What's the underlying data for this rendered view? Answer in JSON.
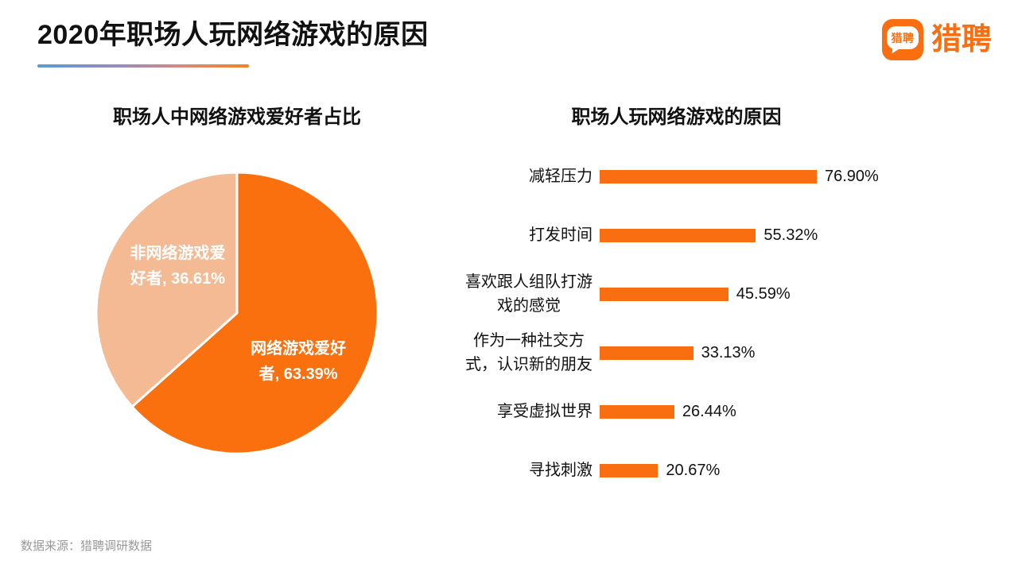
{
  "header": {
    "title": "2020年职场人玩网络游戏的原因",
    "logo": {
      "badge_text": "猎聘",
      "brand_text": "猎聘"
    }
  },
  "footer": {
    "source": "数据来源：猎聘调研数据"
  },
  "colors": {
    "accent_orange": "#FA6E12",
    "pie_dark": "#FA700F",
    "pie_light": "#F4BA94",
    "underline_gradient_start": "#5B9BD5",
    "underline_gradient_end": "#F58220",
    "source_text": "#999999"
  },
  "chart_data": [
    {
      "type": "pie",
      "title": "职场人中网络游戏爱好者占比",
      "start_angle_deg": 0,
      "direction": "clockwise",
      "slices": [
        {
          "label": "网络游戏爱好者",
          "value": 63.39,
          "display_lines": [
            "网络游戏爱好",
            "者, 63.39%"
          ],
          "color": "#FA700F"
        },
        {
          "label": "非网络游戏爱好者",
          "value": 36.61,
          "display_lines": [
            "非网络游戏爱",
            "好者, 36.61%"
          ],
          "color": "#F4BA94"
        }
      ]
    },
    {
      "type": "bar",
      "title": "职场人玩网络游戏的原因",
      "orientation": "horizontal",
      "xlim": [
        0,
        100
      ],
      "bar_color": "#FA6E12",
      "categories": [
        "减轻压力",
        "打发时间",
        "喜欢跟人组队打游戏的感觉",
        "作为一种社交方式，认识新的朋友",
        "享受虚拟世界",
        "寻找刺激"
      ],
      "category_display_lines": [
        [
          "减轻压力"
        ],
        [
          "打发时间"
        ],
        [
          "喜欢跟人组队打游",
          "戏的感觉"
        ],
        [
          "作为一种社交方",
          "式，认识新的朋友"
        ],
        [
          "享受虚拟世界"
        ],
        [
          "寻找刺激"
        ]
      ],
      "values": [
        76.9,
        55.32,
        45.59,
        33.13,
        26.44,
        20.67
      ],
      "value_labels": [
        "76.90%",
        "55.32%",
        "45.59%",
        "33.13%",
        "26.44%",
        "20.67%"
      ]
    }
  ]
}
